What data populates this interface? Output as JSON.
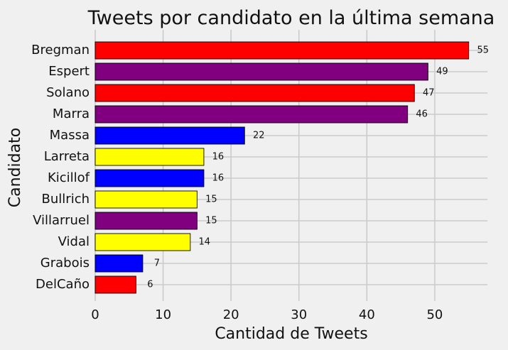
{
  "chart_data": {
    "type": "bar",
    "orientation": "horizontal",
    "title": "Tweets por candidato en la última semana",
    "xlabel": "Cantidad de Tweets",
    "ylabel": "Candidato",
    "xlim": [
      0,
      57.75
    ],
    "xticks": [
      0,
      10,
      20,
      30,
      40,
      50
    ],
    "grid": true,
    "legend": "none",
    "categories": [
      "Bregman",
      "Espert",
      "Solano",
      "Marra",
      "Massa",
      "Larreta",
      "Kicillof",
      "Bullrich",
      "Villarruel",
      "Vidal",
      "Grabois",
      "DelCaño"
    ],
    "values": [
      55,
      49,
      47,
      46,
      22,
      16,
      16,
      15,
      15,
      14,
      7,
      6
    ],
    "colors": [
      "#ff0000",
      "#800080",
      "#ff0000",
      "#800080",
      "#0000ff",
      "#ffff00",
      "#0000ff",
      "#ffff00",
      "#800080",
      "#ffff00",
      "#0000ff",
      "#ff0000"
    ],
    "background": "#f0f0f0"
  }
}
